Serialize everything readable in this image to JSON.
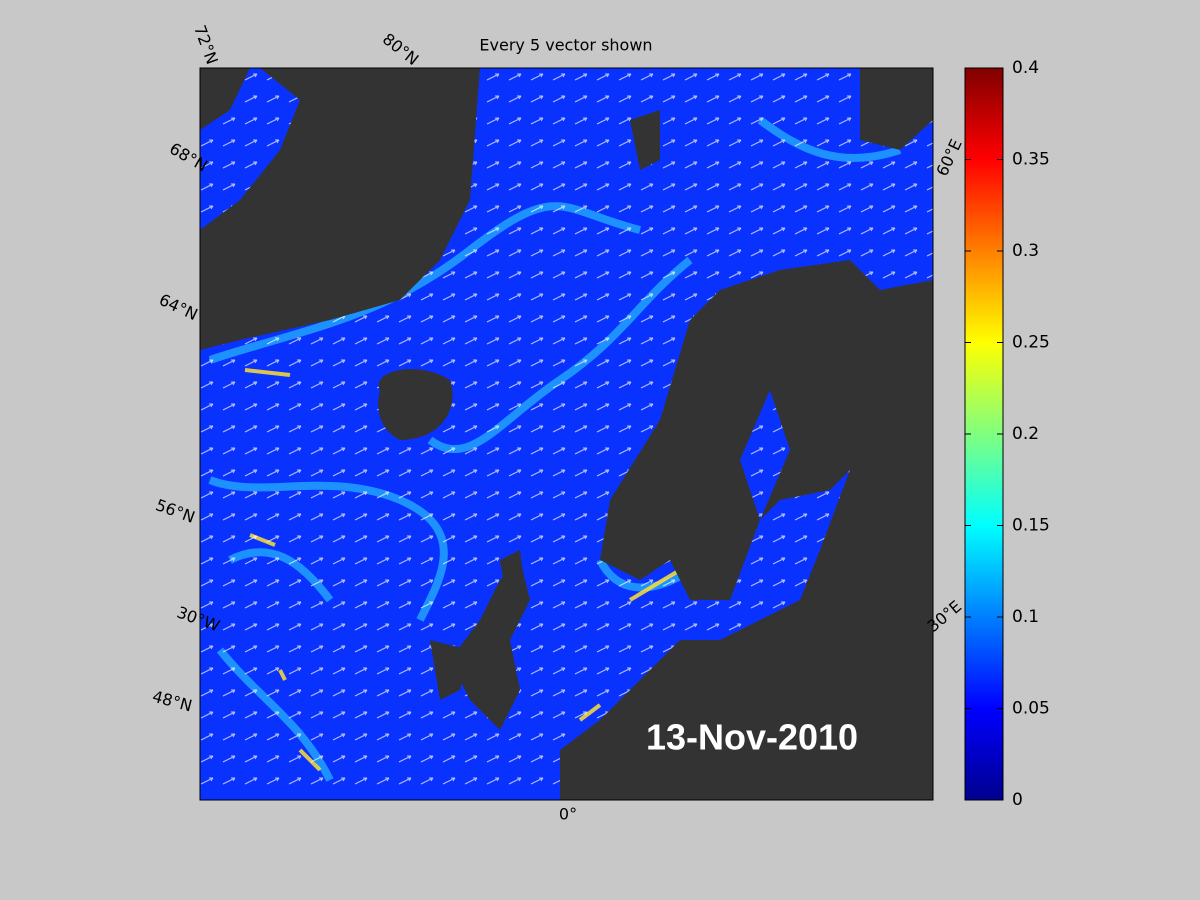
{
  "title": "Every 5 vector shown",
  "date_label": "13-Nov-2010",
  "grid_labels": [
    "72°N",
    "80°N",
    "68°N",
    "64°N",
    "56°N",
    "48°N",
    "30°W",
    "0°",
    "30°E",
    "60°E"
  ],
  "colorbar": {
    "lim": [
      0,
      0.4
    ],
    "ticks": [
      0,
      0.05,
      0.1,
      0.15,
      0.2,
      0.25,
      0.3,
      0.35,
      0.4
    ]
  }
}
